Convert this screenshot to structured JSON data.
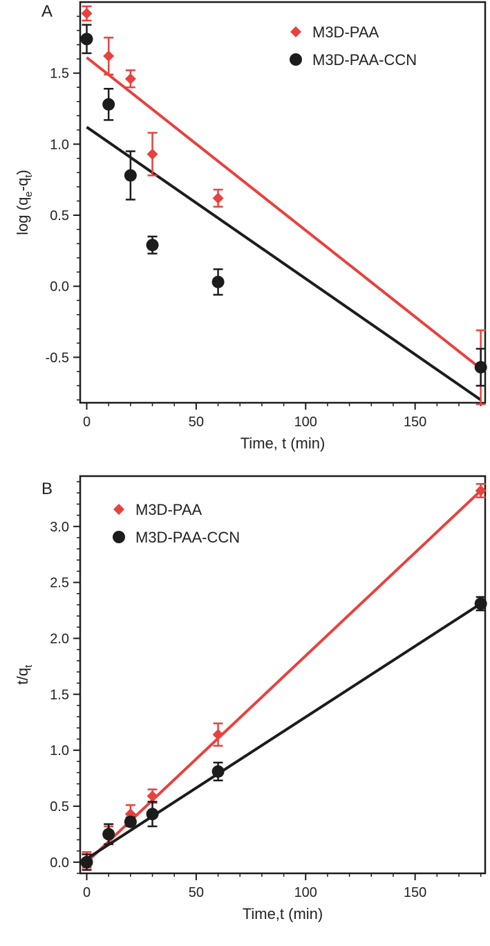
{
  "colors": {
    "red": "#e8413e",
    "black": "#1c1c1c"
  },
  "chart_data": [
    {
      "panel": "A",
      "type": "scatter",
      "xlabel": "Time, t (min)",
      "ylabel": {
        "base": "log (q",
        "sub1": "e",
        "mid": "-q",
        "sub2": "t",
        "end": ")"
      },
      "xlim": [
        -3,
        182
      ],
      "ylim": [
        -0.82,
        2.0
      ],
      "x_ticks": [
        0,
        50,
        100,
        150
      ],
      "y_ticks": [
        -0.5,
        0.0,
        0.5,
        1.0,
        1.5
      ],
      "x_tick_labels": [
        "0",
        "50",
        "100",
        "150"
      ],
      "y_tick_labels": [
        "-0.5",
        "0.0",
        "0.5",
        "1.0",
        "1.5"
      ],
      "legend_position": "top-right",
      "series": [
        {
          "name": "M3D-PAA",
          "marker": "diamond",
          "color": "#e8413e",
          "x": [
            0,
            10,
            20,
            30,
            60,
            180
          ],
          "y": [
            1.92,
            1.62,
            1.46,
            0.93,
            0.62,
            -0.57
          ],
          "err": [
            0.05,
            0.13,
            0.06,
            0.15,
            0.06,
            0.26
          ],
          "fit": {
            "x": [
              0,
              180
            ],
            "y": [
              1.61,
              -0.58
            ]
          }
        },
        {
          "name": "M3D-PAA-CCN",
          "marker": "circle",
          "color": "#1c1c1c",
          "x": [
            0,
            10,
            20,
            30,
            60,
            180
          ],
          "y": [
            1.74,
            1.28,
            0.78,
            0.29,
            0.03,
            -0.57
          ],
          "err": [
            0.1,
            0.11,
            0.17,
            0.06,
            0.09,
            0.13
          ],
          "fit": {
            "x": [
              0,
              180
            ],
            "y": [
              1.12,
              -0.8
            ]
          }
        }
      ]
    },
    {
      "panel": "B",
      "type": "scatter",
      "xlabel": "Time,t (min)",
      "ylabel": {
        "base": "t/q",
        "sub1": "t",
        "mid": "",
        "sub2": "",
        "end": ""
      },
      "xlim": [
        -3,
        182
      ],
      "ylim": [
        -0.1,
        3.45
      ],
      "x_ticks": [
        0,
        50,
        100,
        150
      ],
      "y_ticks": [
        0.0,
        0.5,
        1.0,
        1.5,
        2.0,
        2.5,
        3.0
      ],
      "x_tick_labels": [
        "0",
        "50",
        "100",
        "150"
      ],
      "y_tick_labels": [
        "0.0",
        "0.5",
        "1.0",
        "1.5",
        "2.0",
        "2.5",
        "3.0"
      ],
      "legend_position": "top-left",
      "series": [
        {
          "name": "M3D-PAA",
          "marker": "diamond",
          "color": "#e8413e",
          "x": [
            0,
            10,
            20,
            30,
            60,
            180
          ],
          "y": [
            0.02,
            0.27,
            0.43,
            0.59,
            1.14,
            3.32
          ],
          "err": [
            0.07,
            0.05,
            0.08,
            0.06,
            0.1,
            0.06
          ],
          "fit": {
            "x": [
              0,
              180
            ],
            "y": [
              0.0,
              3.32
            ]
          }
        },
        {
          "name": "M3D-PAA-CCN",
          "marker": "circle",
          "color": "#1c1c1c",
          "x": [
            0,
            10,
            20,
            30,
            60,
            180
          ],
          "y": [
            0.0,
            0.25,
            0.36,
            0.43,
            0.81,
            2.31
          ],
          "err": [
            0.07,
            0.09,
            0.04,
            0.11,
            0.08,
            0.06
          ],
          "fit": {
            "x": [
              0,
              180
            ],
            "y": [
              0.03,
              2.31
            ]
          }
        }
      ]
    }
  ]
}
